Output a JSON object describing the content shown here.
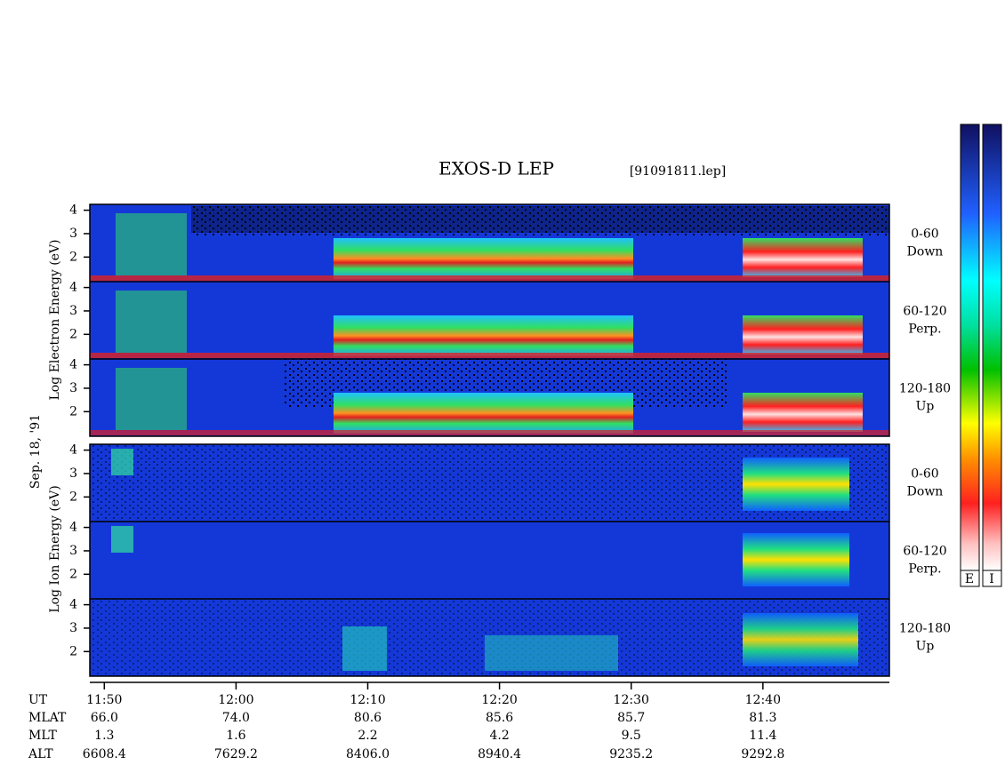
{
  "header": {
    "title": "EXOS-D LEP",
    "file": "[91091811.lep]"
  },
  "date": "Sep. 18, '91",
  "electron_axis_label": "Log  Electron  Energy  (eV)",
  "ion_axis_label": "Log  Ion  Energy  (eV)",
  "ylim": [
    0.95,
    4.25
  ],
  "yticks": [
    2,
    3,
    4
  ],
  "electron_panels": [
    {
      "angle": "0-60",
      "direction": "Down"
    },
    {
      "angle": "60-120",
      "direction": "Perp."
    },
    {
      "angle": "120-180",
      "direction": "Up"
    }
  ],
  "ion_panels": [
    {
      "angle": "0-60",
      "direction": "Down"
    },
    {
      "angle": "60-120",
      "direction": "Perp."
    },
    {
      "angle": "120-180",
      "direction": "Up"
    }
  ],
  "xlim": [
    48.9,
    109.6
  ],
  "xticks": [
    {
      "value": 50,
      "label": "11:50"
    },
    {
      "value": 60,
      "label": "12:00"
    },
    {
      "value": 70,
      "label": "12:10"
    },
    {
      "value": 80,
      "label": "12:20"
    },
    {
      "value": 90,
      "label": "12:30"
    },
    {
      "value": 100,
      "label": "12:40"
    }
  ],
  "ephemeris": [
    {
      "name": "UT"
    },
    {
      "name": "MLAT",
      "values": [
        "66.0",
        "74.0",
        "80.6",
        "85.6",
        "85.7",
        "81.3"
      ]
    },
    {
      "name": "MLT",
      "values": [
        "1.3",
        "1.6",
        "2.2",
        "4.2",
        "9.5",
        "11.4"
      ]
    },
    {
      "name": "ALT",
      "values": [
        "6608.4",
        "7629.2",
        "8406.0",
        "8940.4",
        "9235.2",
        "9292.8"
      ]
    }
  ],
  "colorbar_labels": [
    "E",
    "I"
  ]
}
